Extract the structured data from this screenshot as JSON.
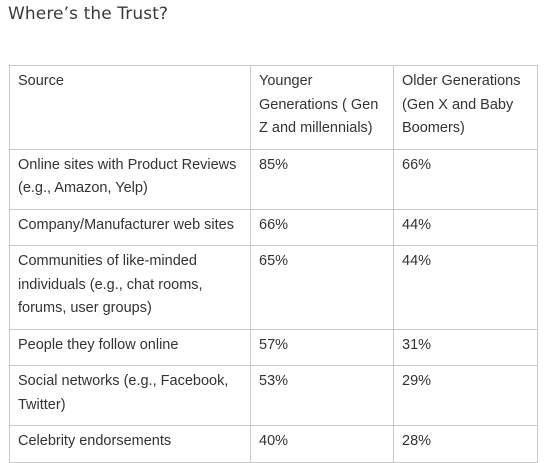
{
  "title": "Where’s the Trust?",
  "table": {
    "headers": [
      "Source",
      "Younger Generations ( Gen Z and millennials)",
      "Older Generations (Gen X and Baby Boomers)"
    ],
    "rows": [
      [
        "Online sites with Product Reviews (e.g., Amazon, Yelp)",
        "85%",
        "66%"
      ],
      [
        "Company/Manufacturer web sites",
        "66%",
        "44%"
      ],
      [
        "Communities of like-minded individuals (e.g., chat rooms, forums, user groups)",
        "65%",
        "44%"
      ],
      [
        "People they follow online",
        "57%",
        "31%"
      ],
      [
        "Social networks (e.g., Facebook, Twitter)",
        "53%",
        "29%"
      ],
      [
        "Celebrity endorsements",
        "40%",
        "28%"
      ]
    ]
  }
}
